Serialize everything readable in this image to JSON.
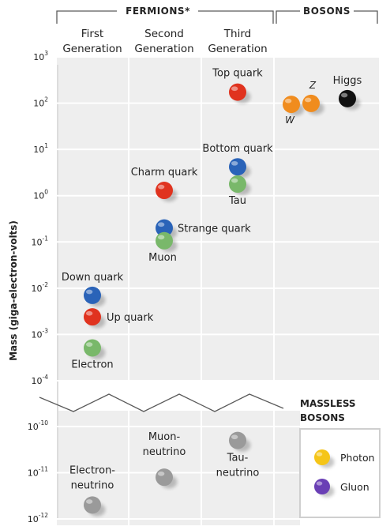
{
  "chart_data": {
    "type": "scatter",
    "ylabel": "Mass (giga-electron-volts)",
    "yscale": "log",
    "groups": [
      {
        "label": "FERMIONS*",
        "columns": [
          "First Generation",
          "Second Generation",
          "Third Generation"
        ]
      },
      {
        "label": "BOSONS",
        "columns": [
          ""
        ]
      }
    ],
    "columns": [
      {
        "key": "gen1",
        "line1": "First",
        "line2": "Generation"
      },
      {
        "key": "gen2",
        "line1": "Second",
        "line2": "Generation"
      },
      {
        "key": "gen3",
        "line1": "Third",
        "line2": "Generation"
      },
      {
        "key": "bosons",
        "line1": "",
        "line2": ""
      }
    ],
    "upper_axis": {
      "ylim_exp": [
        -4,
        3
      ],
      "ticks": [
        {
          "base": "10",
          "exp": "3"
        },
        {
          "base": "10",
          "exp": "2"
        },
        {
          "base": "10",
          "exp": "1"
        },
        {
          "base": "10",
          "exp": "0"
        },
        {
          "base": "10",
          "exp": "-1"
        },
        {
          "base": "10",
          "exp": "-2"
        },
        {
          "base": "10",
          "exp": "-3"
        },
        {
          "base": "10",
          "exp": "-4"
        }
      ]
    },
    "lower_axis": {
      "ylim_exp": [
        -12,
        -10
      ],
      "ticks": [
        {
          "base": "10",
          "exp": "-10"
        },
        {
          "base": "10",
          "exp": "-11"
        },
        {
          "base": "10",
          "exp": "-12"
        }
      ]
    },
    "particles": [
      {
        "name": "Top quark",
        "column": "gen3",
        "mass_gev": 173,
        "color": "#e0331f"
      },
      {
        "name": "Bottom quark",
        "column": "gen3",
        "mass_gev": 4.2,
        "color": "#2a63b8"
      },
      {
        "name": "Tau",
        "column": "gen3",
        "mass_gev": 1.78,
        "color": "#79b86a"
      },
      {
        "name": "Charm quark",
        "column": "gen2",
        "mass_gev": 1.3,
        "color": "#e0331f"
      },
      {
        "name": "Strange quark",
        "column": "gen2",
        "mass_gev": 0.2,
        "color": "#2a63b8"
      },
      {
        "name": "Muon",
        "column": "gen2",
        "mass_gev": 0.106,
        "color": "#79b86a"
      },
      {
        "name": "Down quark",
        "column": "gen1",
        "mass_gev": 0.007,
        "color": "#2a63b8"
      },
      {
        "name": "Up quark",
        "column": "gen1",
        "mass_gev": 0.0024,
        "color": "#e0331f"
      },
      {
        "name": "Electron",
        "column": "gen1",
        "mass_gev": 0.000511,
        "color": "#79b86a"
      },
      {
        "name": "W",
        "column": "bosons",
        "mass_gev": 80.4,
        "color": "#f08c1e"
      },
      {
        "name": "Z",
        "column": "bosons",
        "mass_gev": 91.2,
        "color": "#f08c1e"
      },
      {
        "name": "Higgs",
        "column": "bosons",
        "mass_gev": 125,
        "color": "#111111"
      },
      {
        "name": "Electron-neutrino",
        "line1": "Electron-",
        "line2": "neutrino",
        "column": "gen1",
        "mass_gev": 2e-12,
        "color": "#9a9a9a"
      },
      {
        "name": "Muon-neutrino",
        "line1": "Muon-",
        "line2": "neutrino",
        "column": "gen2",
        "mass_gev": 8e-12,
        "color": "#9a9a9a"
      },
      {
        "name": "Tau-neutrino",
        "line1": "Tau-",
        "line2": "neutrino",
        "column": "gen3",
        "mass_gev": 5e-11,
        "color": "#9a9a9a"
      }
    ],
    "legend": {
      "title_line1": "MASSLESS",
      "title_line2": "BOSONS",
      "items": [
        {
          "name": "Photon",
          "color": "#f5c518"
        },
        {
          "name": "Gluon",
          "color": "#6a3fb5"
        }
      ]
    }
  }
}
